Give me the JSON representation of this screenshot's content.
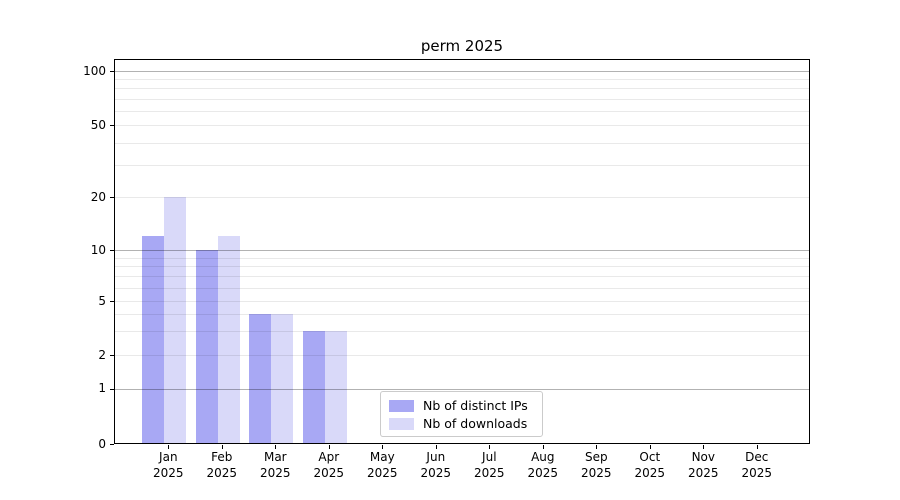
{
  "title": "perm 2025",
  "legend": {
    "items": [
      {
        "label": "Nb of distinct IPs",
        "color": "#a8a8f4"
      },
      {
        "label": "Nb of downloads",
        "color": "#d9d9f9"
      }
    ]
  },
  "axes": {
    "y_ticks": [
      {
        "value": 100,
        "label": "100"
      },
      {
        "value": 50,
        "label": "50"
      },
      {
        "value": 20,
        "label": "20"
      },
      {
        "value": 10,
        "label": "10"
      },
      {
        "value": 5,
        "label": "5"
      },
      {
        "value": 2,
        "label": "2"
      },
      {
        "value": 1,
        "label": "1"
      },
      {
        "value": 0,
        "label": "0"
      }
    ],
    "x_ticks": [
      {
        "month": "Jan",
        "year": "2025"
      },
      {
        "month": "Feb",
        "year": "2025"
      },
      {
        "month": "Mar",
        "year": "2025"
      },
      {
        "month": "Apr",
        "year": "2025"
      },
      {
        "month": "May",
        "year": "2025"
      },
      {
        "month": "Jun",
        "year": "2025"
      },
      {
        "month": "Jul",
        "year": "2025"
      },
      {
        "month": "Aug",
        "year": "2025"
      },
      {
        "month": "Sep",
        "year": "2025"
      },
      {
        "month": "Oct",
        "year": "2025"
      },
      {
        "month": "Nov",
        "year": "2025"
      },
      {
        "month": "Dec",
        "year": "2025"
      }
    ]
  },
  "chart_data": {
    "type": "bar",
    "title": "perm 2025",
    "categories": [
      "Jan 2025",
      "Feb 2025",
      "Mar 2025",
      "Apr 2025",
      "May 2025",
      "Jun 2025",
      "Jul 2025",
      "Aug 2025",
      "Sep 2025",
      "Oct 2025",
      "Nov 2025",
      "Dec 2025"
    ],
    "series": [
      {
        "name": "Nb of distinct IPs",
        "color": "#a8a8f4",
        "values": [
          12,
          10,
          4,
          3,
          0,
          0,
          0,
          0,
          0,
          0,
          0,
          0
        ]
      },
      {
        "name": "Nb of downloads",
        "color": "#d9d9f9",
        "values": [
          20,
          12,
          4,
          3,
          0,
          0,
          0,
          0,
          0,
          0,
          0,
          0
        ]
      }
    ],
    "xlabel": "",
    "ylabel": "",
    "yscale": "log-like (symlog including 0)",
    "y_tick_values": [
      0,
      1,
      2,
      5,
      10,
      20,
      50,
      100
    ],
    "ylim": [
      0,
      110
    ],
    "grid": "horizontal major + minor",
    "legend_position": "lower center inside plot"
  },
  "colors": {
    "bar_distinct_ips": "#a8a8f4",
    "bar_downloads": "#d9d9f9",
    "grid_major": "#b3b3b3",
    "grid_minor": "#e9e9e9",
    "axis": "#000000",
    "background": "#ffffff"
  }
}
